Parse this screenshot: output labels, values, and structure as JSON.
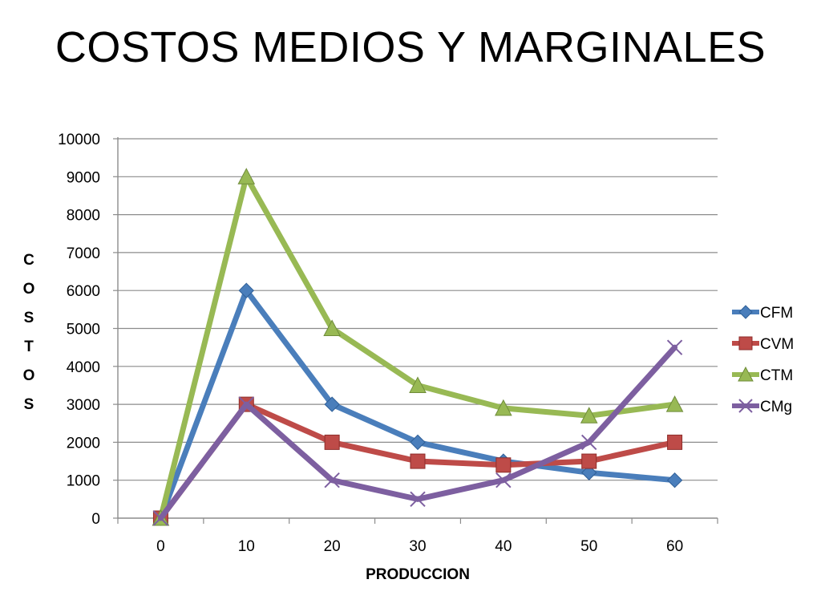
{
  "slide": {
    "title": "COSTOS MEDIOS Y MARGINALES"
  },
  "chart_data": {
    "type": "line",
    "title": "COSTOS MEDIOS Y MARGINALES",
    "xlabel": "PRODUCCION",
    "ylabel": "COSTOS",
    "x": [
      "0",
      "10",
      "20",
      "30",
      "40",
      "50",
      "60"
    ],
    "ylim": [
      0,
      10000
    ],
    "yticks": [
      0,
      1000,
      2000,
      3000,
      4000,
      5000,
      6000,
      7000,
      8000,
      9000,
      10000
    ],
    "grid": true,
    "legend": "right",
    "series": [
      {
        "name": "CFM",
        "color": "#4A7EBB",
        "marker": "diamond",
        "values": [
          0,
          6000,
          3000,
          2000,
          1500,
          1200,
          1000
        ]
      },
      {
        "name": "CVM",
        "color": "#BE4B48",
        "marker": "square",
        "values": [
          0,
          3000,
          2000,
          1500,
          1400,
          1500,
          2000
        ]
      },
      {
        "name": "CTM",
        "color": "#98B954",
        "marker": "triangle",
        "values": [
          0,
          9000,
          5000,
          3500,
          2900,
          2700,
          3000
        ]
      },
      {
        "name": "CMg",
        "color": "#7D5FA0",
        "marker": "x",
        "values": [
          0,
          3000,
          1000,
          500,
          1000,
          2000,
          4500
        ]
      }
    ]
  }
}
